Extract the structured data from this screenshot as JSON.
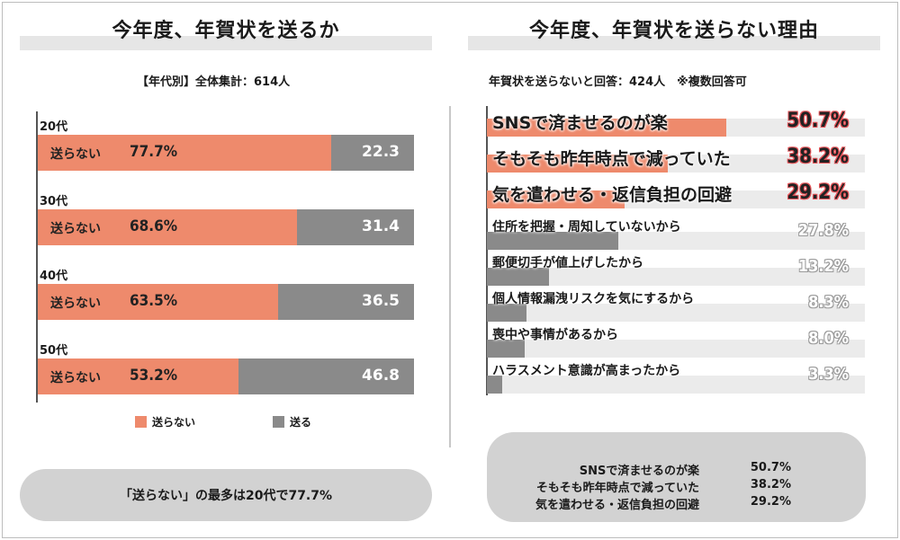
{
  "left": {
    "title": "今年度、年賀状を送るか",
    "subtitle": "【年代別】全体集計：614人",
    "send_not_label": "送らない",
    "legend": {
      "not_send": "送らない",
      "send": "送る"
    },
    "callout": "「送らない」の最多は20代で77.7%"
  },
  "right": {
    "title": "今年度、年賀状を送らない理由",
    "subtitle": "年賀状を送らないと回答：424人　※複数回答可",
    "summary": [
      {
        "name": "SNSで済ませるのが楽",
        "value": "50.7%"
      },
      {
        "name": "そもそも昨年時点で減っていた",
        "value": "38.2%"
      },
      {
        "name": "気を遣わせる・返信負担の回避",
        "value": "29.2%"
      }
    ]
  },
  "colors": {
    "not_send": "#ee8a6c",
    "send": "#8a8a8a",
    "track": "#ebebeb"
  },
  "chart_data": [
    {
      "type": "bar",
      "orientation": "horizontal",
      "stacked": true,
      "title": "今年度、年賀状を送るか",
      "categories": [
        "20代",
        "30代",
        "40代",
        "50代"
      ],
      "series": [
        {
          "name": "送らない",
          "values": [
            77.7,
            68.6,
            63.5,
            53.2
          ],
          "labels": [
            "77.7%",
            "68.6%",
            "63.5%",
            "53.2%"
          ]
        },
        {
          "name": "送る",
          "values": [
            22.3,
            31.4,
            36.5,
            46.8
          ],
          "labels": [
            "22.3",
            "31.4",
            "36.5",
            "46.8"
          ]
        }
      ],
      "xlim": [
        0,
        100
      ],
      "legend": "bottom"
    },
    {
      "type": "bar",
      "orientation": "horizontal",
      "title": "今年度、年賀状を送らない理由",
      "categories": [
        "SNSで済ませるのが楽",
        "そもそも昨年時点で減っていた",
        "気を遣わせる・返信負担の回避",
        "住所を把握・周知していないから",
        "郵便切手が値上げしたから",
        "個人情報漏洩リスクを気にするから",
        "喪中や事情があるから",
        "ハラスメント意識が高まったから"
      ],
      "values": [
        50.7,
        38.2,
        29.2,
        27.8,
        13.2,
        8.3,
        8.0,
        3.3
      ],
      "labels": [
        "50.7%",
        "38.2%",
        "29.2%",
        "27.8%",
        "13.2%",
        "8.3%",
        "8.0%",
        "3.3%"
      ],
      "highlight_top": 3,
      "xlim": [
        0,
        80
      ]
    }
  ]
}
